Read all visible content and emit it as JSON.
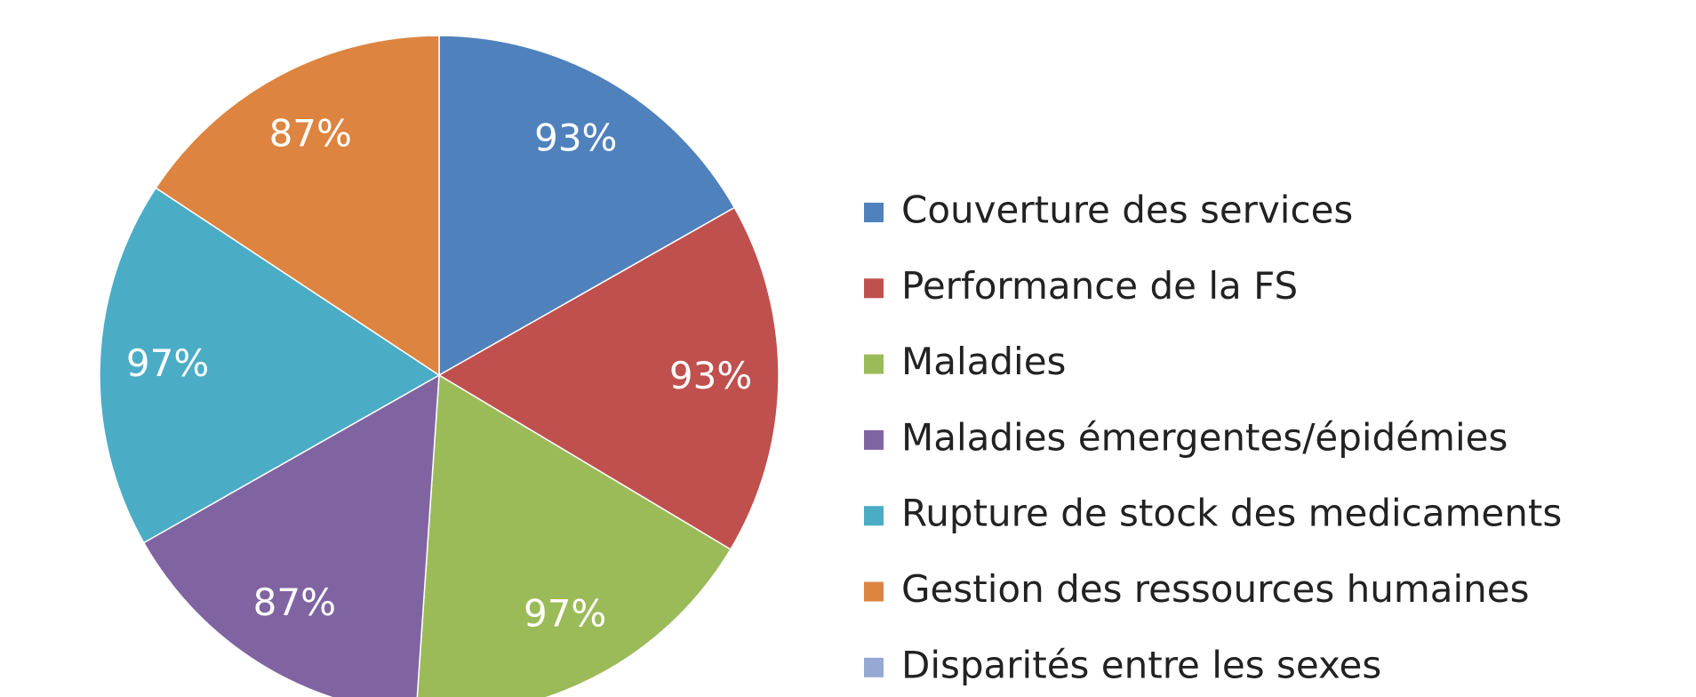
{
  "chart_data": {
    "type": "pie",
    "categories": [
      "Couverture des services",
      "Performance de la FS",
      "Maladies",
      "Maladies émergentes/épidémies",
      "Rupture de stock des medicaments",
      "Gestion des ressources humaines",
      "Disparités entre les sexes"
    ],
    "values": [
      93,
      93,
      97,
      87,
      97,
      87,
      0
    ],
    "value_labels": [
      "93%",
      "93%",
      "97%",
      "87%",
      "97%",
      "87%",
      null
    ],
    "colors": [
      "#4f81bd",
      "#c0504d",
      "#9bbb59",
      "#8064a2",
      "#4bacc6",
      "#dd8440",
      "#95a9d3"
    ],
    "legend": "right"
  }
}
